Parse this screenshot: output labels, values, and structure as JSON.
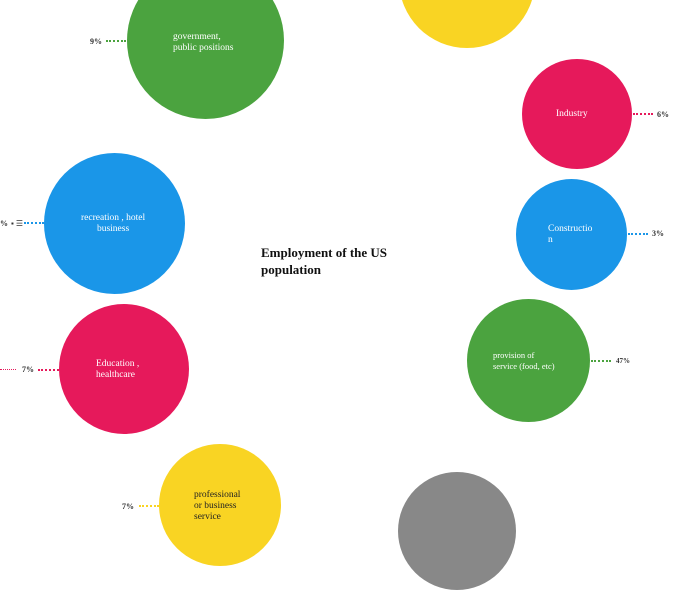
{
  "title": "Employment of the US\npopulation",
  "colors": {
    "green": "#4ba33f",
    "yellow": "#f9d423",
    "pink": "#e6195b",
    "blue": "#1a96e8",
    "gray": "#888888"
  },
  "nodes": {
    "government": {
      "label": "government,\npublic positions",
      "percent": "9%"
    },
    "industry": {
      "label": "Industry",
      "percent": "6%"
    },
    "recreation": {
      "label": "recreation , hotel\nbusiness",
      "percent": "%"
    },
    "construction": {
      "label": "Constructio\nn",
      "percent": "3%"
    },
    "provision": {
      "label": "provision  of\nservice  (food, etc)",
      "percent": "47%"
    },
    "education": {
      "label": "Education ,\nhealthcare",
      "percent": "7%"
    },
    "professional": {
      "label": "professional\nor business\nservice",
      "percent": "7%"
    }
  }
}
